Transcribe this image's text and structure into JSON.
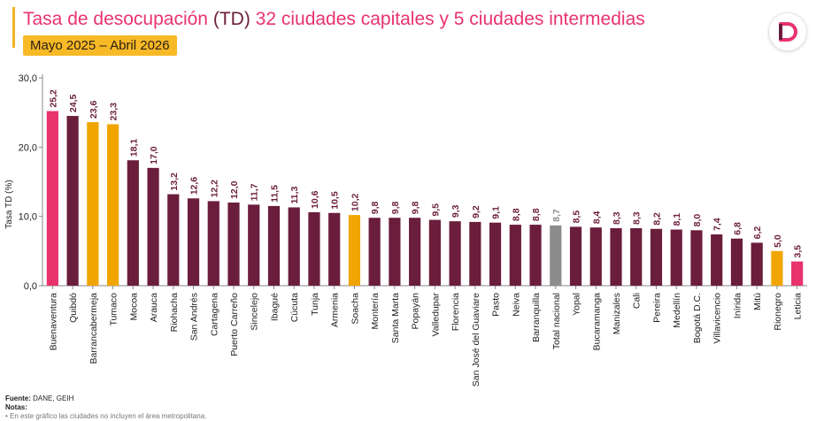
{
  "header": {
    "title_part1": "Tasa de desocupación",
    "title_part2": " (TD) ",
    "title_part3": "32 ciudades capitales y 5 ciudades intermedias",
    "subtitle": "Mayo 2025 – Abril 2026",
    "logo_letter": "D"
  },
  "footer": {
    "source_label": "Fuente:",
    "source_text": " DANE, GEIH",
    "notes_label": "Notas:",
    "note_1": "• En este gráfico las ciudades no incluyen el área metropolitana."
  },
  "colors": {
    "default": "#6b1d3c",
    "pink": "#e8336d",
    "orange": "#f0a500",
    "gray": "#8c8c8c",
    "title_pink": "#e8336d",
    "title_dark": "#6b1d3c",
    "subtitle_bg": "#f7b926"
  },
  "chart_data": {
    "type": "bar",
    "ylabel": "Tasa TD (%)",
    "xlabel": "",
    "ylim": [
      0,
      30
    ],
    "yticks": [
      "0,0",
      "10,0",
      "20,0",
      "30,0"
    ],
    "ytick_values": [
      0,
      10,
      20,
      30
    ],
    "grid": false,
    "categories": [
      "Buenaventura",
      "Quibdó",
      "Barrancabermeja",
      "Tumaco",
      "Mocoa",
      "Arauca",
      "Riohacha",
      "San Andrés",
      "Cartagena",
      "Puerto Carreño",
      "Sincelejo",
      "Ibagué",
      "Cúcuta",
      "Tunja",
      "Armenia",
      "Soacha",
      "Montería",
      "Santa Marta",
      "Popayán",
      "Valledupar",
      "Florencia",
      "San José del Guaviare",
      "Pasto",
      "Neiva",
      "Barranquilla",
      "Total nacional",
      "Yopal",
      "Bucaramanga",
      "Manizales",
      "Cali",
      "Pereira",
      "Medellín",
      "Bogotá D.C.",
      "Villavicencio",
      "Inírida",
      "Mitú",
      "Rionegro",
      "Leticia"
    ],
    "values": [
      25.2,
      24.5,
      23.6,
      23.3,
      18.1,
      17.0,
      13.2,
      12.6,
      12.2,
      12.0,
      11.7,
      11.5,
      11.3,
      10.6,
      10.5,
      10.2,
      9.8,
      9.8,
      9.8,
      9.5,
      9.3,
      9.2,
      9.1,
      8.8,
      8.8,
      8.7,
      8.5,
      8.4,
      8.3,
      8.3,
      8.2,
      8.1,
      8.0,
      7.4,
      6.8,
      6.2,
      5.0,
      3.5
    ],
    "value_labels": [
      "25,2",
      "24,5",
      "23,6",
      "23,3",
      "18,1",
      "17,0",
      "13,2",
      "12,6",
      "12,2",
      "12,0",
      "11,7",
      "11,5",
      "11,3",
      "10,6",
      "10,5",
      "10,2",
      "9,8",
      "9,8",
      "9,8",
      "9,5",
      "9,3",
      "9,2",
      "9,1",
      "8,8",
      "8,8",
      "8,7",
      "8,5",
      "8,4",
      "8,3",
      "8,3",
      "8,2",
      "8,1",
      "8,0",
      "7,4",
      "6,8",
      "6,2",
      "5,0",
      "3,5"
    ],
    "bar_colors": [
      "pink",
      "default",
      "orange",
      "orange",
      "default",
      "default",
      "default",
      "default",
      "default",
      "default",
      "default",
      "default",
      "default",
      "default",
      "default",
      "orange",
      "default",
      "default",
      "default",
      "default",
      "default",
      "default",
      "default",
      "default",
      "default",
      "gray",
      "default",
      "default",
      "default",
      "default",
      "default",
      "default",
      "default",
      "default",
      "default",
      "default",
      "orange",
      "pink"
    ]
  }
}
